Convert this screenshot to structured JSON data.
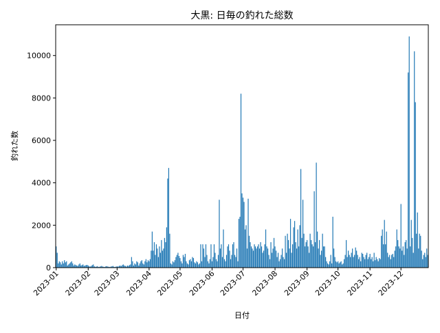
{
  "chart_data": {
    "type": "bar",
    "title": "大黒: 日毎の釣れた総数",
    "x_label": "日付",
    "y_label": "釣れた数",
    "color": "#1f77b4",
    "ylim": [
      0,
      11450
    ],
    "yticks": [
      0,
      2000,
      4000,
      6000,
      8000,
      10000
    ],
    "categories": [
      "2023-01",
      null,
      null,
      null,
      null,
      null,
      null,
      null,
      null,
      null,
      null,
      null,
      null,
      null,
      null,
      null,
      null,
      null,
      null,
      null,
      null,
      null,
      null,
      null,
      null,
      null,
      null,
      null,
      null,
      null,
      null,
      "2023-02",
      null,
      null,
      null,
      null,
      null,
      null,
      null,
      null,
      null,
      null,
      null,
      null,
      null,
      null,
      null,
      null,
      null,
      null,
      null,
      null,
      null,
      null,
      null,
      null,
      null,
      null,
      null,
      "2023-03",
      null,
      null,
      null,
      null,
      null,
      null,
      null,
      null,
      null,
      null,
      null,
      null,
      null,
      null,
      null,
      null,
      null,
      null,
      null,
      null,
      null,
      null,
      null,
      null,
      null,
      null,
      null,
      null,
      null,
      null,
      "2023-04",
      null,
      null,
      null,
      null,
      null,
      null,
      null,
      null,
      null,
      null,
      null,
      null,
      null,
      null,
      null,
      null,
      null,
      null,
      null,
      null,
      null,
      null,
      null,
      null,
      null,
      null,
      null,
      null,
      null,
      "2023-05",
      null,
      null,
      null,
      null,
      null,
      null,
      null,
      null,
      null,
      null,
      null,
      null,
      null,
      null,
      null,
      null,
      null,
      null,
      null,
      null,
      null,
      null,
      null,
      null,
      null,
      null,
      null,
      null,
      null,
      null,
      "2023-06",
      null,
      null,
      null,
      null,
      null,
      null,
      null,
      null,
      null,
      null,
      null,
      null,
      null,
      null,
      null,
      null,
      null,
      null,
      null,
      null,
      null,
      null,
      null,
      null,
      null,
      null,
      null,
      null,
      null,
      "2023-07",
      null,
      null,
      null,
      null,
      null,
      null,
      null,
      null,
      null,
      null,
      null,
      null,
      null,
      null,
      null,
      null,
      null,
      null,
      null,
      null,
      null,
      null,
      null,
      null,
      null,
      null,
      null,
      null,
      null,
      null,
      "2023-08",
      null,
      null,
      null,
      null,
      null,
      null,
      null,
      null,
      null,
      null,
      null,
      null,
      null,
      null,
      null,
      null,
      null,
      null,
      null,
      null,
      null,
      null,
      null,
      null,
      null,
      null,
      null,
      null,
      null,
      null,
      "2023-09",
      null,
      null,
      null,
      null,
      null,
      null,
      null,
      null,
      null,
      null,
      null,
      null,
      null,
      null,
      null,
      null,
      null,
      null,
      null,
      null,
      null,
      null,
      null,
      null,
      null,
      null,
      null,
      null,
      null,
      "2023-10",
      null,
      null,
      null,
      null,
      null,
      null,
      null,
      null,
      null,
      null,
      null,
      null,
      null,
      null,
      null,
      null,
      null,
      null,
      null,
      null,
      null,
      null,
      null,
      null,
      null,
      null,
      null,
      null,
      null,
      null,
      "2023-11",
      null,
      null,
      null,
      null,
      null,
      null,
      null,
      null,
      null,
      null,
      null,
      null,
      null,
      null,
      null,
      null,
      null,
      null,
      null,
      null,
      null,
      null,
      null,
      null,
      null,
      null,
      null,
      null,
      null,
      "2023-12",
      null,
      null,
      null,
      null,
      null,
      null,
      null,
      null,
      null,
      null,
      null,
      null,
      null,
      null,
      null,
      null,
      null,
      null,
      null,
      null,
      null,
      null,
      null,
      null,
      null,
      null
    ],
    "values": [
      1000,
      700,
      200,
      300,
      250,
      150,
      300,
      200,
      350,
      250,
      300,
      100,
      150,
      200,
      250,
      300,
      200,
      100,
      150,
      120,
      100,
      80,
      150,
      200,
      100,
      120,
      150,
      80,
      100,
      120,
      130,
      100,
      60,
      50,
      80,
      120,
      150,
      60,
      40,
      50,
      70,
      30,
      40,
      60,
      80,
      50,
      40,
      30,
      60,
      70,
      50,
      40,
      30,
      50,
      60,
      80,
      40,
      30,
      50,
      60,
      50,
      80,
      100,
      70,
      120,
      150,
      100,
      80,
      50,
      100,
      80,
      120,
      150,
      500,
      300,
      100,
      200,
      150,
      300,
      250,
      100,
      200,
      300,
      350,
      200,
      150,
      300,
      400,
      250,
      350,
      300,
      400,
      800,
      1700,
      800,
      1200,
      600,
      1100,
      900,
      500,
      1000,
      700,
      1300,
      800,
      900,
      1400,
      1200,
      1900,
      4200,
      4700,
      1600,
      200,
      150,
      300,
      250,
      350,
      500,
      600,
      700,
      550,
      450,
      300,
      200,
      600,
      500,
      650,
      300,
      200,
      150,
      350,
      400,
      300,
      500,
      450,
      250,
      200,
      300,
      250,
      150,
      200,
      1100,
      300,
      1100,
      900,
      500,
      1100,
      600,
      300,
      200,
      400,
      1100,
      300,
      500,
      1100,
      700,
      400,
      300,
      600,
      3200,
      900,
      1100,
      500,
      1800,
      400,
      300,
      600,
      1000,
      1100,
      800,
      400,
      600,
      1100,
      1200,
      600,
      500,
      900,
      300,
      2300,
      2400,
      8200,
      3500,
      3300,
      3100,
      1800,
      2000,
      900,
      3250,
      1500,
      1200,
      1000,
      900,
      800,
      1100,
      1000,
      900,
      1000,
      1100,
      900,
      1200,
      1000,
      700,
      800,
      1100,
      1800,
      1000,
      900,
      600,
      400,
      1200,
      700,
      900,
      1400,
      1000,
      800,
      500,
      700,
      300,
      400,
      600,
      900,
      500,
      400,
      1500,
      700,
      1600,
      1300,
      900,
      2300,
      700,
      1100,
      1900,
      2200,
      1200,
      900,
      1800,
      1000,
      2000,
      4650,
      1400,
      3200,
      1600,
      1000,
      1200,
      1300,
      1000,
      700,
      1600,
      1300,
      1100,
      1000,
      3600,
      1200,
      4950,
      1700,
      900,
      1300,
      600,
      800,
      1600,
      1000,
      1000,
      500,
      300,
      200,
      150,
      300,
      600,
      200,
      2400,
      900,
      500,
      300,
      250,
      300,
      200,
      250,
      300,
      150,
      200,
      400,
      600,
      1300,
      500,
      800,
      600,
      500,
      700,
      900,
      500,
      600,
      950,
      800,
      600,
      400,
      500,
      300,
      700,
      650,
      500,
      400,
      600,
      700,
      400,
      500,
      650,
      400,
      500,
      300,
      700,
      350,
      500,
      400,
      300,
      450,
      400,
      1500,
      1800,
      1100,
      2250,
      1100,
      1700,
      700,
      500,
      600,
      400,
      600,
      650,
      500,
      800,
      1000,
      1800,
      1300,
      1000,
      900,
      3000,
      800,
      1000,
      600,
      1200,
      1300,
      900,
      9200,
      10900,
      1000,
      2250,
      1400,
      700,
      10200,
      7800,
      1600,
      2600,
      900,
      1600,
      1500,
      800,
      400,
      600,
      700,
      500,
      900,
      600
    ]
  }
}
